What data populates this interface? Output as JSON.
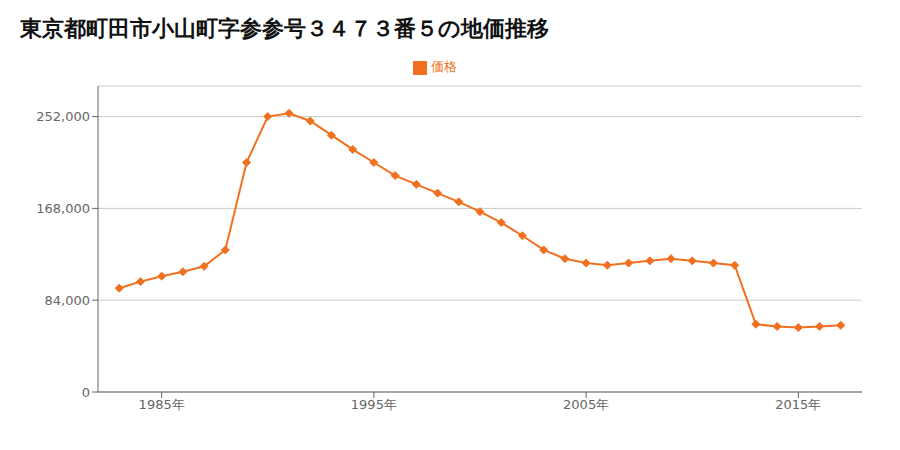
{
  "chart_data": {
    "type": "line",
    "title": "東京都町田市小山町字参参号３４７３番５の地価推移",
    "x": [
      1983,
      1984,
      1985,
      1986,
      1987,
      1988,
      1989,
      1990,
      1991,
      1992,
      1993,
      1994,
      1995,
      1996,
      1997,
      1998,
      1999,
      2000,
      2001,
      2002,
      2003,
      2004,
      2005,
      2006,
      2007,
      2008,
      2009,
      2010,
      2011,
      2012,
      2013,
      2014,
      2015,
      2016,
      2017
    ],
    "series": [
      {
        "name": "価格",
        "color": "#f07020",
        "marker": "diamond",
        "values": [
          95000,
          101000,
          106000,
          110000,
          115000,
          130000,
          210000,
          252000,
          255000,
          248000,
          235000,
          222000,
          210000,
          198000,
          190000,
          182000,
          174000,
          165000,
          155000,
          143000,
          130000,
          122000,
          118000,
          116000,
          118000,
          120000,
          122000,
          120000,
          118000,
          116000,
          62000,
          60000,
          59000,
          60000,
          61000
        ]
      }
    ],
    "xlim": [
      1982,
      2018
    ],
    "xticks": [
      {
        "value": 1985,
        "label": "1985年"
      },
      {
        "value": 1995,
        "label": "1995年"
      },
      {
        "value": 2005,
        "label": "2005年"
      },
      {
        "value": 2015,
        "label": "2015年"
      }
    ],
    "ylim": [
      0,
      280000
    ],
    "yticks": [
      0,
      {
        "value": 84000,
        "label": "84,000"
      },
      {
        "value": 168000,
        "label": "168,000"
      },
      {
        "value": 252000,
        "label": "252,000"
      }
    ],
    "grid": true,
    "legend": "top"
  }
}
